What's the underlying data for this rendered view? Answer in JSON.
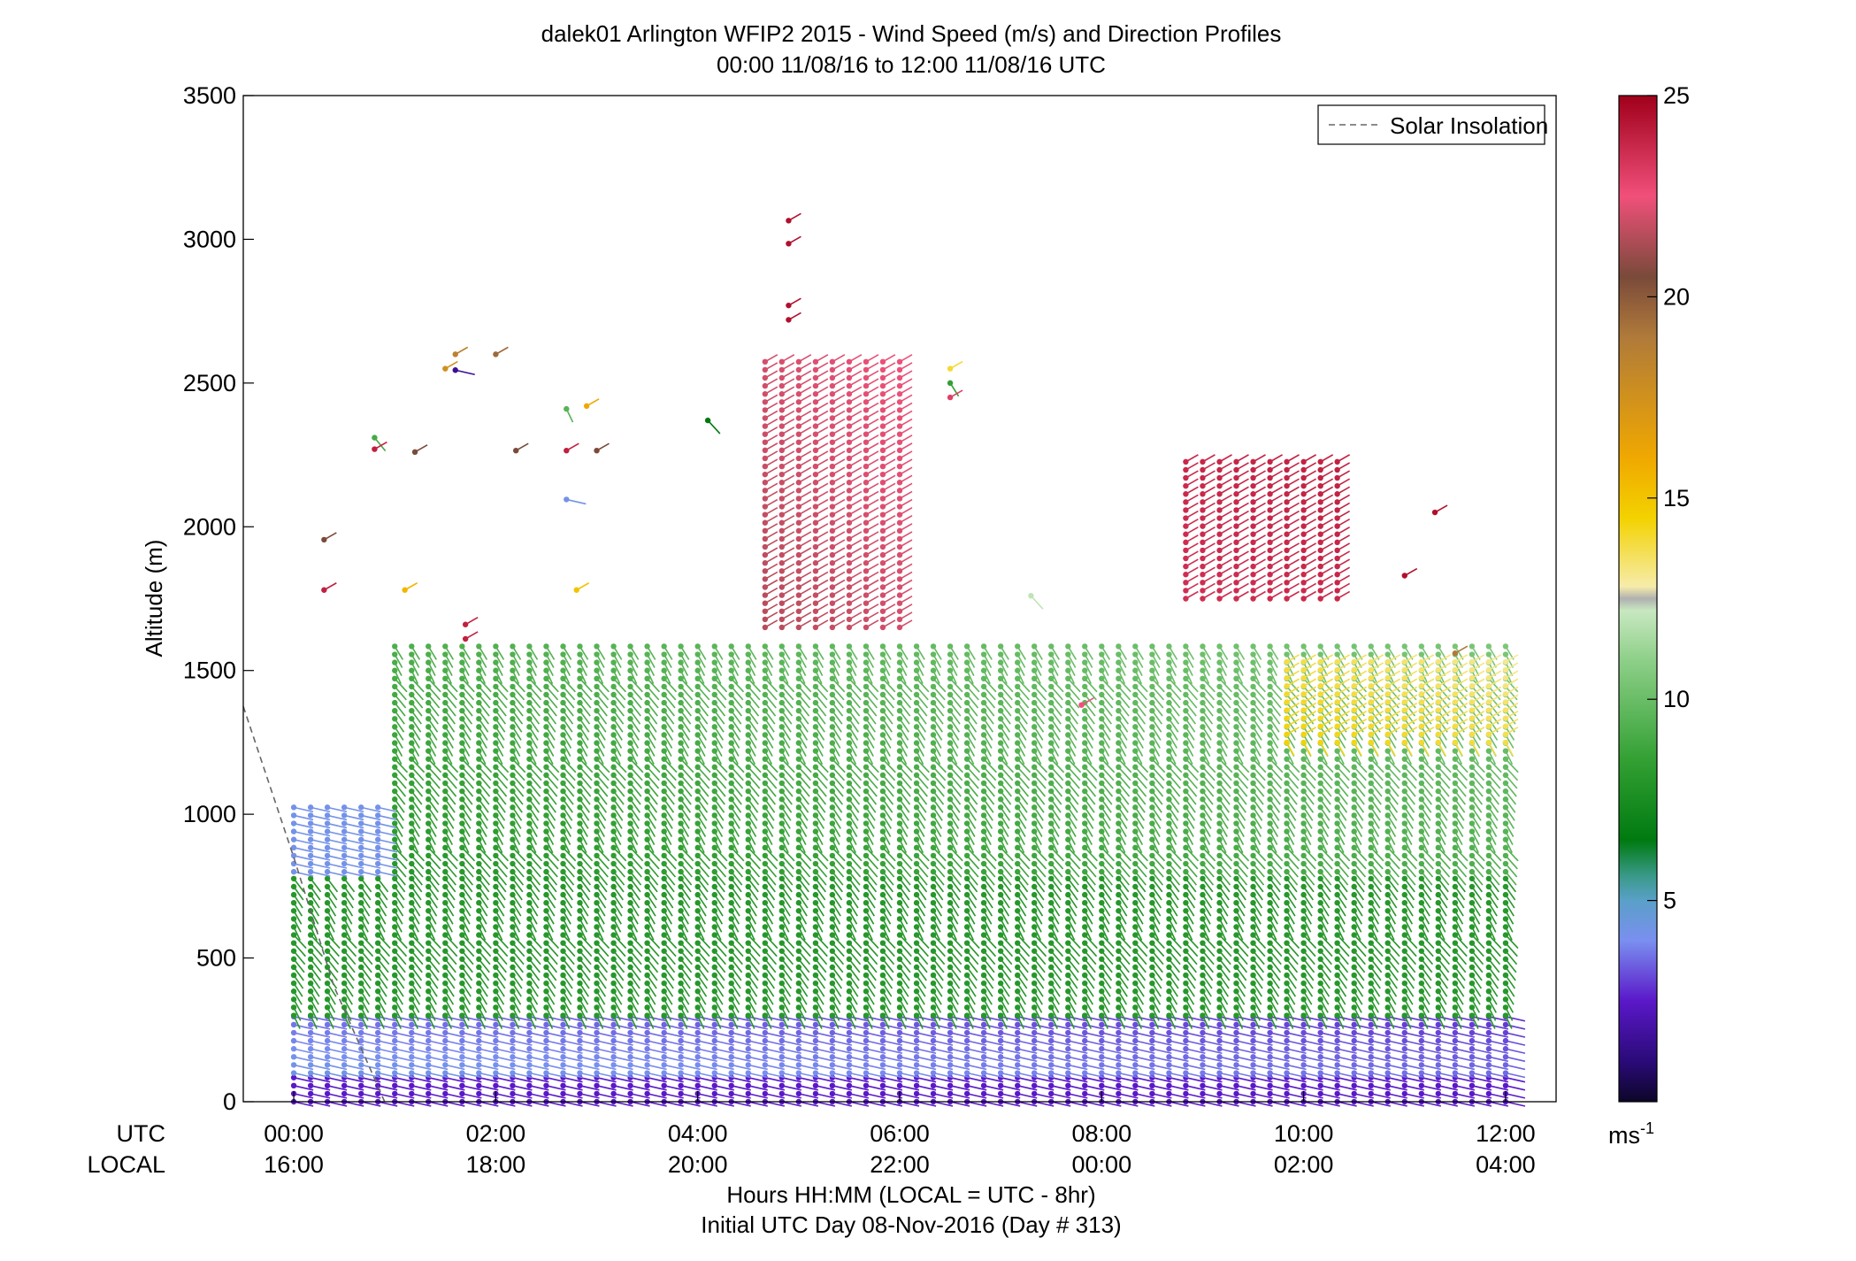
{
  "chart_data": {
    "type": "wind-barb-profile",
    "title": "dalek01 Arlington WFIP2 2015 - Wind Speed (m/s) and Direction Profiles",
    "subtitle": "00:00 11/08/16 to 12:00 11/08/16  UTC",
    "ylabel": "Altitude (m)",
    "ylim": [
      0,
      3500
    ],
    "y_ticks": [
      0,
      500,
      1000,
      1500,
      2000,
      2500,
      3000,
      3500
    ],
    "xlim_hours": [
      -0.5,
      12.5
    ],
    "x_ticks": [
      {
        "hour": 0,
        "utc": "00:00",
        "local": "16:00"
      },
      {
        "hour": 2,
        "utc": "02:00",
        "local": "18:00"
      },
      {
        "hour": 4,
        "utc": "04:00",
        "local": "20:00"
      },
      {
        "hour": 6,
        "utc": "06:00",
        "local": "22:00"
      },
      {
        "hour": 8,
        "utc": "08:00",
        "local": "00:00"
      },
      {
        "hour": 10,
        "utc": "10:00",
        "local": "02:00"
      },
      {
        "hour": 12,
        "utc": "12:00",
        "local": "04:00"
      }
    ],
    "row_label_utc": "UTC",
    "row_label_local": "LOCAL",
    "xlabel": "Hours HH:MM  (LOCAL = UTC - 8hr)",
    "xlabel2": "Initial UTC Day 08-Nov-2016 (Day # 313)",
    "legend": {
      "entries": [
        "Solar Insolation"
      ],
      "location": "top-right"
    },
    "solar_insolation": [
      [
        -0.5,
        1375
      ],
      [
        0.0,
        850
      ],
      [
        0.4,
        400
      ],
      [
        0.9,
        0
      ]
    ],
    "colorbar": {
      "ticks": [
        5,
        10,
        15,
        20,
        25
      ],
      "range": [
        0,
        25
      ],
      "unit_label": "ms",
      "unit_exp": "-1",
      "stops": [
        {
          "v": 0.0,
          "color": "#0d0628"
        },
        {
          "v": 1.0,
          "color": "#2a0a78"
        },
        {
          "v": 2.5,
          "color": "#5a18c8"
        },
        {
          "v": 4.0,
          "color": "#7a8ff0"
        },
        {
          "v": 5.0,
          "color": "#5aa0c8"
        },
        {
          "v": 5.6,
          "color": "#3a9a8a"
        },
        {
          "v": 6.5,
          "color": "#007a10"
        },
        {
          "v": 8.5,
          "color": "#33a033"
        },
        {
          "v": 11.0,
          "color": "#8fd08a"
        },
        {
          "v": 12.2,
          "color": "#c8e8c0"
        },
        {
          "v": 12.5,
          "color": "#b0b0b0"
        },
        {
          "v": 12.8,
          "color": "#f6ecaa"
        },
        {
          "v": 14.5,
          "color": "#f3d200"
        },
        {
          "v": 16.0,
          "color": "#f0a800"
        },
        {
          "v": 19.0,
          "color": "#b07a3a"
        },
        {
          "v": 20.5,
          "color": "#7a4a3a"
        },
        {
          "v": 22.5,
          "color": "#f0507a"
        },
        {
          "v": 25.0,
          "color": "#a0001a"
        }
      ]
    },
    "profile_segments": [
      {
        "h0": 0.0,
        "h1": 12.0,
        "alt0": 0,
        "alt1": 100,
        "speed0": 2.5,
        "speed1": 2.5
      },
      {
        "h0": 0.0,
        "h1": 12.0,
        "alt0": 100,
        "alt1": 300,
        "speed0": 4.3,
        "speed1": 2.8
      },
      {
        "h0": 0.0,
        "h1": 12.0,
        "alt0": 300,
        "alt1": 780,
        "speed0": 8.0,
        "speed1": 8.0
      },
      {
        "h0": 0.0,
        "h1": 0.9,
        "alt0": 800,
        "alt1": 1050,
        "speed0": 4.2,
        "speed1": 4.2
      },
      {
        "h0": 0.9,
        "h1": 12.0,
        "alt0": 800,
        "alt1": 1600,
        "speed0": 8.0,
        "speed1": 10.5
      },
      {
        "h0": 4.6,
        "h1": 6.0,
        "alt0": 1650,
        "alt1": 2600,
        "speed0": 21.5,
        "speed1": 22.5
      },
      {
        "h0": 8.8,
        "h1": 10.4,
        "alt0": 1750,
        "alt1": 2250,
        "speed0": 23.5,
        "speed1": 24.0
      },
      {
        "h0": 9.8,
        "h1": 12.0,
        "alt0": 1250,
        "alt1": 1550,
        "speed0": 14.5,
        "speed1": 13.0
      }
    ],
    "isolated_barbs": [
      {
        "hour": 4.9,
        "alt": 3065,
        "speed": 24.5
      },
      {
        "hour": 4.9,
        "alt": 2985,
        "speed": 24.5
      },
      {
        "hour": 4.9,
        "alt": 2770,
        "speed": 24.5
      },
      {
        "hour": 4.9,
        "alt": 2720,
        "speed": 24.5
      },
      {
        "hour": 1.6,
        "alt": 2600,
        "speed": 18.5
      },
      {
        "hour": 2.0,
        "alt": 2600,
        "speed": 19.5
      },
      {
        "hour": 1.5,
        "alt": 2550,
        "speed": 17.5
      },
      {
        "hour": 1.6,
        "alt": 2545,
        "speed": 1.5
      },
      {
        "hour": 6.5,
        "alt": 2550,
        "speed": 14.0
      },
      {
        "hour": 6.5,
        "alt": 2500,
        "speed": 8.5
      },
      {
        "hour": 6.5,
        "alt": 2450,
        "speed": 23.0
      },
      {
        "hour": 2.9,
        "alt": 2420,
        "speed": 16.0
      },
      {
        "hour": 2.7,
        "alt": 2410,
        "speed": 9.5
      },
      {
        "hour": 4.1,
        "alt": 2370,
        "speed": 6.5
      },
      {
        "hour": 0.8,
        "alt": 2310,
        "speed": 9.0
      },
      {
        "hour": 0.8,
        "alt": 2270,
        "speed": 24.0
      },
      {
        "hour": 1.2,
        "alt": 2260,
        "speed": 20.5
      },
      {
        "hour": 2.2,
        "alt": 2265,
        "speed": 20.5
      },
      {
        "hour": 2.7,
        "alt": 2265,
        "speed": 24.0
      },
      {
        "hour": 3.0,
        "alt": 2265,
        "speed": 20.5
      },
      {
        "hour": 2.7,
        "alt": 2095,
        "speed": 4.2
      },
      {
        "hour": 0.3,
        "alt": 1955,
        "speed": 20.5
      },
      {
        "hour": 0.3,
        "alt": 1780,
        "speed": 24.0
      },
      {
        "hour": 1.1,
        "alt": 1780,
        "speed": 15.5
      },
      {
        "hour": 2.8,
        "alt": 1780,
        "speed": 15.0
      },
      {
        "hour": 1.7,
        "alt": 1660,
        "speed": 24.0
      },
      {
        "hour": 1.7,
        "alt": 1610,
        "speed": 24.0
      },
      {
        "hour": 11.3,
        "alt": 2050,
        "speed": 24.5
      },
      {
        "hour": 11.0,
        "alt": 1830,
        "speed": 24.5
      },
      {
        "hour": 11.5,
        "alt": 1560,
        "speed": 19.0
      },
      {
        "hour": 7.3,
        "alt": 1760,
        "speed": 12.0
      },
      {
        "hour": 7.8,
        "alt": 1380,
        "speed": 22.5
      }
    ]
  }
}
